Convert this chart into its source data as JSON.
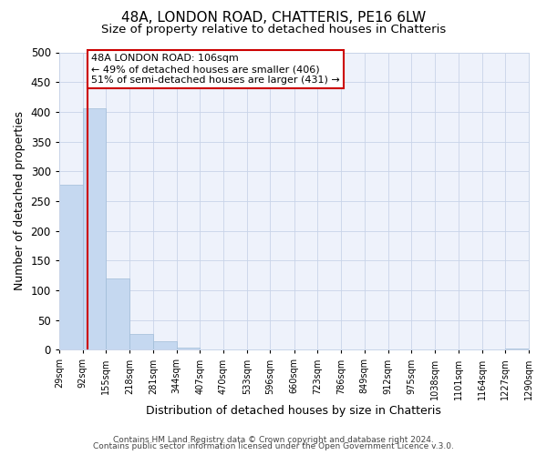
{
  "title": "48A, LONDON ROAD, CHATTERIS, PE16 6LW",
  "subtitle": "Size of property relative to detached houses in Chatteris",
  "xlabel": "Distribution of detached houses by size in Chatteris",
  "ylabel": "Number of detached properties",
  "bar_edges": [
    29,
    92,
    155,
    218,
    281,
    344,
    407,
    470,
    533,
    596,
    660,
    723,
    786,
    849,
    912,
    975,
    1038,
    1101,
    1164,
    1227,
    1290
  ],
  "bar_heights": [
    277,
    406,
    120,
    27,
    14,
    3,
    0,
    0,
    0,
    0,
    0,
    0,
    0,
    0,
    0,
    0,
    0,
    0,
    0,
    2
  ],
  "bar_color": "#c5d8f0",
  "bar_edge_color": "#a0bcd8",
  "property_line_x": 106,
  "property_line_color": "#cc0000",
  "annotation_title": "48A LONDON ROAD: 106sqm",
  "annotation_line1": "← 49% of detached houses are smaller (406)",
  "annotation_line2": "51% of semi-detached houses are larger (431) →",
  "annotation_box_color": "#ffffff",
  "annotation_box_edge": "#cc0000",
  "ylim": [
    0,
    500
  ],
  "xlim": [
    29,
    1290
  ],
  "tick_labels": [
    "29sqm",
    "92sqm",
    "155sqm",
    "218sqm",
    "281sqm",
    "344sqm",
    "407sqm",
    "470sqm",
    "533sqm",
    "596sqm",
    "660sqm",
    "723sqm",
    "786sqm",
    "849sqm",
    "912sqm",
    "975sqm",
    "1038sqm",
    "1101sqm",
    "1164sqm",
    "1227sqm",
    "1290sqm"
  ],
  "footer1": "Contains HM Land Registry data © Crown copyright and database right 2024.",
  "footer2": "Contains public sector information licensed under the Open Government Licence v.3.0.",
  "background_color": "#ffffff",
  "plot_background": "#eef2fb",
  "grid_color": "#c8d4e8",
  "title_fontsize": 11,
  "subtitle_fontsize": 9.5,
  "axis_label_fontsize": 9,
  "tick_fontsize": 7,
  "footer_fontsize": 6.5
}
